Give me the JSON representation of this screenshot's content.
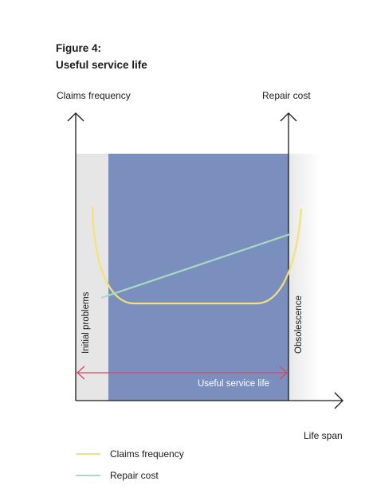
{
  "figure": {
    "number": "Figure 4:",
    "title": "Useful service life"
  },
  "axes": {
    "left": "Claims frequency",
    "right": "Repair cost",
    "x": "Life span"
  },
  "regions": {
    "initial": "Initial problems",
    "obsolescence": "Obsolescence",
    "useful": "Useful service life"
  },
  "legend": [
    {
      "label": "Claims frequency",
      "color": "#f5e07a"
    },
    {
      "label": "Repair cost",
      "color": "#a8dcc0"
    }
  ],
  "colors": {
    "main_region": "#7b8fbf",
    "side_region": "#e6e6e6",
    "arrow": "#d9455f",
    "axis": "#1a1a1a"
  }
}
